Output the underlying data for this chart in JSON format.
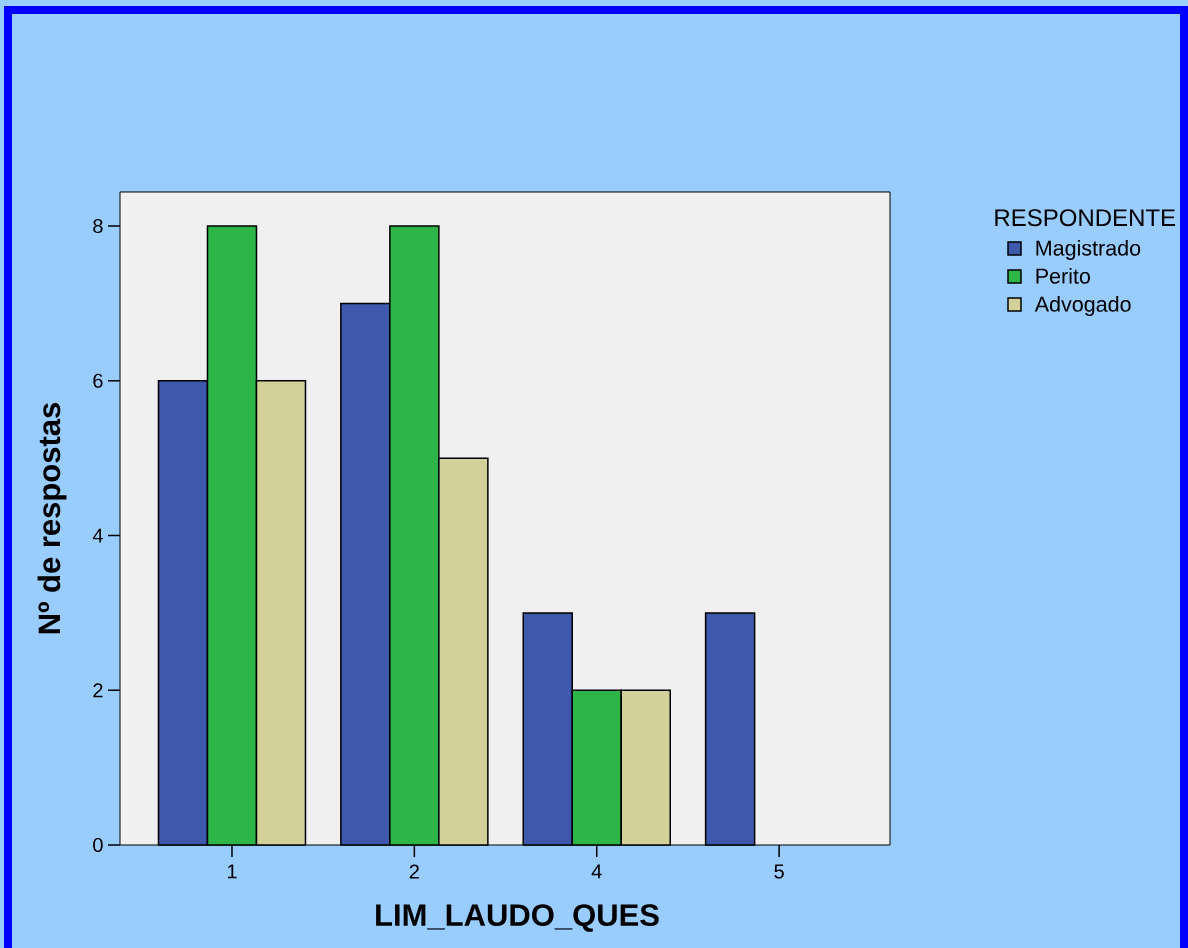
{
  "chart_data": {
    "type": "bar",
    "xlabel": "LIM_LAUDO_QUES",
    "ylabel": "Nº de respostas",
    "legend_title": "RESPONDENTE",
    "categories": [
      "1",
      "2",
      "4",
      "5"
    ],
    "series": [
      {
        "name": "Magistrado",
        "color": "#3e58ac",
        "values": [
          6,
          7,
          3,
          3
        ]
      },
      {
        "name": "Perito",
        "color": "#2eb548",
        "values": [
          8,
          8,
          2,
          null
        ]
      },
      {
        "name": "Advogado",
        "color": "#d4d09a",
        "values": [
          6,
          5,
          2,
          null
        ]
      }
    ],
    "ylim": [
      0,
      8.44
    ],
    "yticks": [
      0,
      2,
      4,
      6,
      8
    ],
    "legend": "right"
  }
}
